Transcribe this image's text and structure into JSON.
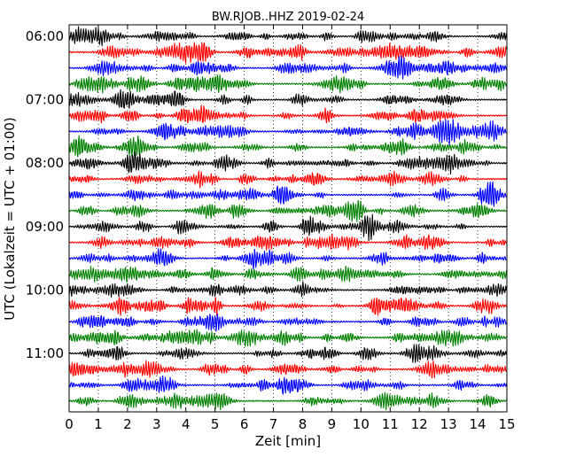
{
  "chart_data": {
    "type": "line",
    "title": "BW.RJOB..HHZ 2019-02-24",
    "xlabel": "Zeit  [min]",
    "ylabel": "UTC (Lokalzeit = UTC + 01:00)",
    "xlim": [
      0,
      15
    ],
    "x_ticks": [
      "0",
      "1",
      "2",
      "3",
      "4",
      "5",
      "6",
      "7",
      "8",
      "9",
      "10",
      "11",
      "12",
      "13",
      "14",
      "15"
    ],
    "y_ticks": [
      {
        "label": "06:00",
        "trace": 0
      },
      {
        "label": "07:00",
        "trace": 4
      },
      {
        "label": "08:00",
        "trace": 8
      },
      {
        "label": "09:00",
        "trace": 12
      },
      {
        "label": "10:00",
        "trace": 16
      },
      {
        "label": "11:00",
        "trace": 20
      }
    ],
    "grid": "vertical dotted lines at each minute",
    "trace_interval_minutes": 15,
    "trace_count": 24,
    "trace_colors": [
      "#000000",
      "#ff0000",
      "#0000ff",
      "#008000"
    ],
    "legend": "none"
  }
}
